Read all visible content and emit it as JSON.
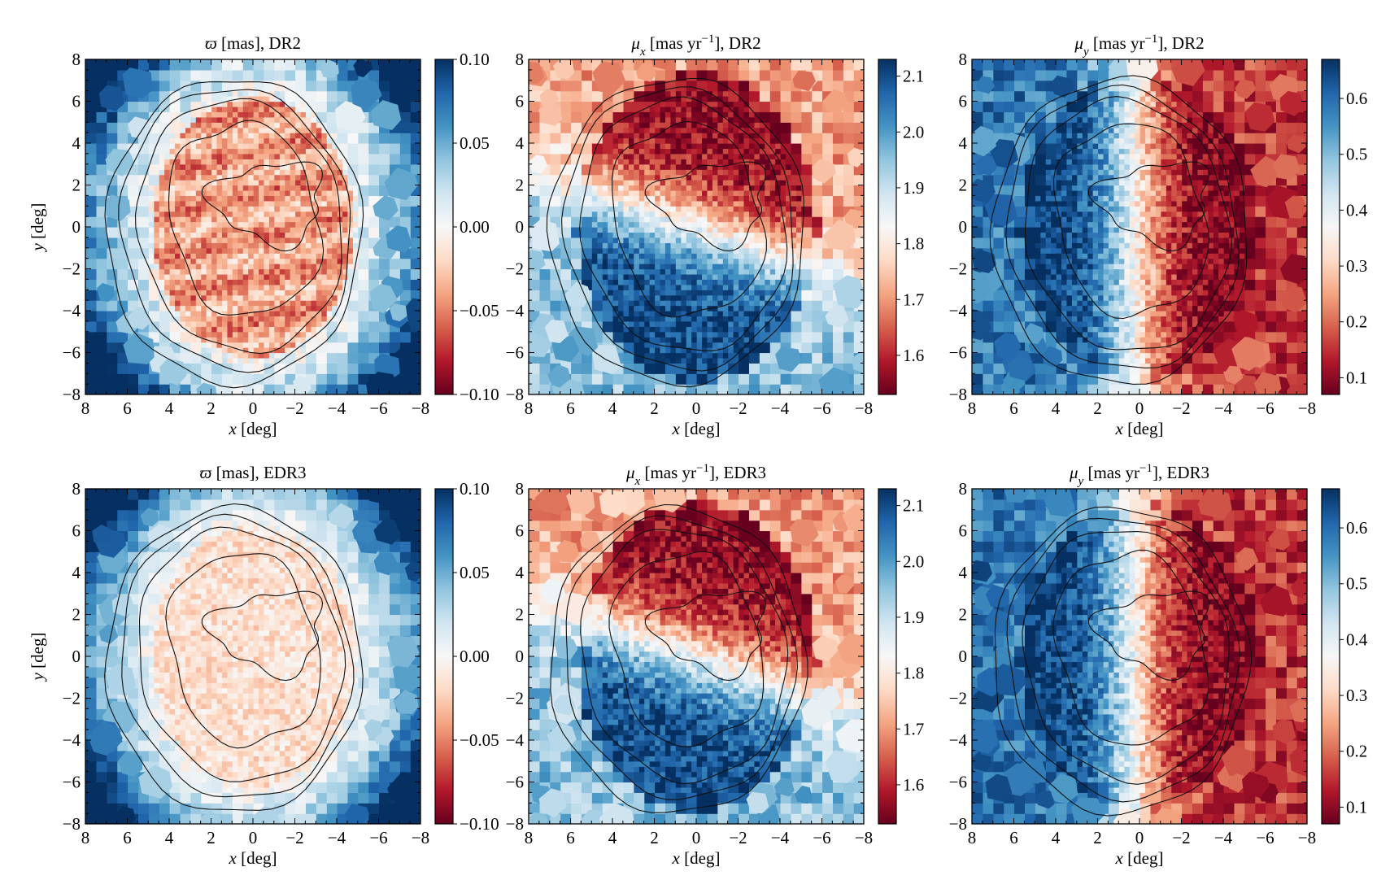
{
  "figure": {
    "panels": [
      {
        "id": "parallax-dr2",
        "title_parts": [
          {
            "t": "ϖ",
            "italic": true
          },
          {
            "t": " [mas], DR2"
          }
        ],
        "cbar_ticks": [
          "0.10",
          "0.05",
          "0.00",
          "−0.05",
          "−0.10"
        ],
        "cbar_values": [
          0.1,
          0.05,
          0.0,
          -0.05,
          -0.1
        ],
        "cbar_range": [
          -0.1,
          0.1
        ],
        "show_ylabel": true
      },
      {
        "id": "mux-dr2",
        "title_parts": [
          {
            "t": "μ",
            "italic": true
          },
          {
            "t": "x",
            "italic": true,
            "sub": true
          },
          {
            "t": " [mas yr"
          },
          {
            "t": "−1",
            "sup": true
          },
          {
            "t": "], DR2"
          }
        ],
        "cbar_ticks": [
          "2.1",
          "2.0",
          "1.9",
          "1.8",
          "1.7",
          "1.6"
        ],
        "cbar_values": [
          2.1,
          2.0,
          1.9,
          1.8,
          1.7,
          1.6
        ],
        "cbar_range": [
          1.53,
          2.13
        ],
        "show_ylabel": false
      },
      {
        "id": "muy-dr2",
        "title_parts": [
          {
            "t": "μ",
            "italic": true
          },
          {
            "t": "y",
            "italic": true,
            "sub": true
          },
          {
            "t": " [mas yr"
          },
          {
            "t": "−1",
            "sup": true
          },
          {
            "t": "], DR2"
          }
        ],
        "cbar_ticks": [
          "0.6",
          "0.5",
          "0.4",
          "0.3",
          "0.2",
          "0.1"
        ],
        "cbar_values": [
          0.6,
          0.5,
          0.4,
          0.3,
          0.2,
          0.1
        ],
        "cbar_range": [
          0.07,
          0.67
        ],
        "show_ylabel": false
      },
      {
        "id": "parallax-edr3",
        "title_parts": [
          {
            "t": "ϖ",
            "italic": true
          },
          {
            "t": " [mas], EDR3"
          }
        ],
        "cbar_ticks": [
          "0.10",
          "0.05",
          "0.00",
          "−0.05",
          "−0.10"
        ],
        "cbar_values": [
          0.1,
          0.05,
          0.0,
          -0.05,
          -0.1
        ],
        "cbar_range": [
          -0.1,
          0.1
        ],
        "show_ylabel": true
      },
      {
        "id": "mux-edr3",
        "title_parts": [
          {
            "t": "μ",
            "italic": true
          },
          {
            "t": "x",
            "italic": true,
            "sub": true
          },
          {
            "t": " [mas yr"
          },
          {
            "t": "−1",
            "sup": true
          },
          {
            "t": "], EDR3"
          }
        ],
        "cbar_ticks": [
          "2.1",
          "2.0",
          "1.9",
          "1.8",
          "1.7",
          "1.6"
        ],
        "cbar_values": [
          2.1,
          2.0,
          1.9,
          1.8,
          1.7,
          1.6
        ],
        "cbar_range": [
          1.53,
          2.13
        ],
        "show_ylabel": false
      },
      {
        "id": "muy-edr3",
        "title_parts": [
          {
            "t": "μ",
            "italic": true
          },
          {
            "t": "y",
            "italic": true,
            "sub": true
          },
          {
            "t": " [mas yr"
          },
          {
            "t": "−1",
            "sup": true
          },
          {
            "t": "], EDR3"
          }
        ],
        "cbar_ticks": [
          "0.6",
          "0.5",
          "0.4",
          "0.3",
          "0.2",
          "0.1"
        ],
        "cbar_values": [
          0.6,
          0.5,
          0.4,
          0.3,
          0.2,
          0.1
        ],
        "cbar_range": [
          0.07,
          0.67
        ],
        "show_ylabel": false
      }
    ],
    "x_ticks": [
      "8",
      "6",
      "4",
      "2",
      "0",
      "−2",
      "−4",
      "−6",
      "−8"
    ],
    "x_values": [
      8,
      6,
      4,
      2,
      0,
      -2,
      -4,
      -6,
      -8
    ],
    "y_ticks": [
      "8",
      "6",
      "4",
      "2",
      "0",
      "−2",
      "−4",
      "−6",
      "−8"
    ],
    "y_values": [
      8,
      6,
      4,
      2,
      0,
      -2,
      -4,
      -6,
      -8
    ],
    "xlabel_var": "x",
    "xlabel_unit": " [deg]",
    "ylabel_var": "y",
    "ylabel_unit": " [deg]",
    "colormap": "RdBu",
    "colormap_stops": [
      "#67001f",
      "#b2182b",
      "#d6604d",
      "#f4a582",
      "#fddbc7",
      "#f7f7f7",
      "#d1e5f0",
      "#92c5de",
      "#4393c3",
      "#2166ac",
      "#053061"
    ]
  },
  "chart_data": [
    {
      "type": "heatmap",
      "title": "ϖ [mas], DR2",
      "xlabel": "x [deg]",
      "ylabel": "y [deg]",
      "xlim": [
        8,
        -8
      ],
      "ylim": [
        -8,
        8
      ],
      "colorbar_range": [
        -0.1,
        0.1
      ],
      "colormap": "RdBu",
      "contours": true
    },
    {
      "type": "heatmap",
      "title": "μx [mas yr−1], DR2",
      "xlabel": "x [deg]",
      "ylabel": "y [deg]",
      "xlim": [
        8,
        -8
      ],
      "ylim": [
        -8,
        8
      ],
      "colorbar_range": [
        1.53,
        2.13
      ],
      "colormap": "RdBu",
      "contours": true
    },
    {
      "type": "heatmap",
      "title": "μy [mas yr−1], DR2",
      "xlabel": "x [deg]",
      "ylabel": "y [deg]",
      "xlim": [
        8,
        -8
      ],
      "ylim": [
        -8,
        8
      ],
      "colorbar_range": [
        0.07,
        0.67
      ],
      "colormap": "RdBu",
      "contours": true
    },
    {
      "type": "heatmap",
      "title": "ϖ [mas], EDR3",
      "xlabel": "x [deg]",
      "ylabel": "y [deg]",
      "xlim": [
        8,
        -8
      ],
      "ylim": [
        -8,
        8
      ],
      "colorbar_range": [
        -0.1,
        0.1
      ],
      "colormap": "RdBu",
      "contours": true
    },
    {
      "type": "heatmap",
      "title": "μx [mas yr−1], EDR3",
      "xlabel": "x [deg]",
      "ylabel": "y [deg]",
      "xlim": [
        8,
        -8
      ],
      "ylim": [
        -8,
        8
      ],
      "colorbar_range": [
        1.53,
        2.13
      ],
      "colormap": "RdBu",
      "contours": true
    },
    {
      "type": "heatmap",
      "title": "μy [mas yr−1], EDR3",
      "xlabel": "x [deg]",
      "ylabel": "y [deg]",
      "xlim": [
        8,
        -8
      ],
      "ylim": [
        -8,
        8
      ],
      "colorbar_range": [
        0.07,
        0.67
      ],
      "colormap": "RdBu",
      "contours": true
    }
  ]
}
